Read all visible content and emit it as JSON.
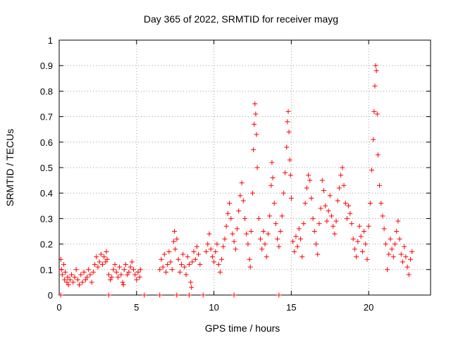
{
  "chart_data": {
    "type": "scatter",
    "title": "Day 365 of 2022, SRMTID for receiver mayg",
    "xlabel": "GPS time / hours",
    "ylabel": "SRMTID / TECUs",
    "xlim": [
      0,
      24
    ],
    "ylim": [
      0,
      1
    ],
    "xticks": [
      {
        "value": 0,
        "label": "0"
      },
      {
        "value": 5,
        "label": "5"
      },
      {
        "value": 10,
        "label": "10"
      },
      {
        "value": 15,
        "label": "15"
      },
      {
        "value": 20,
        "label": "20"
      }
    ],
    "yticks": [
      {
        "value": 0,
        "label": "0"
      },
      {
        "value": 0.1,
        "label": "0.1"
      },
      {
        "value": 0.2,
        "label": "0.2"
      },
      {
        "value": 0.3,
        "label": "0.3"
      },
      {
        "value": 0.4,
        "label": "0.4"
      },
      {
        "value": 0.5,
        "label": "0.5"
      },
      {
        "value": 0.6,
        "label": "0.6"
      },
      {
        "value": 0.7,
        "label": "0.7"
      },
      {
        "value": 0.8,
        "label": "0.8"
      },
      {
        "value": 0.9,
        "label": "0.9"
      },
      {
        "value": 1,
        "label": "1"
      }
    ],
    "grid": true,
    "marker": "+",
    "color": "#ff0000",
    "series": [
      {
        "name": "SRMTID",
        "points": [
          [
            0.1,
            0.14
          ],
          [
            0.15,
            0.1
          ],
          [
            0.2,
            0.08
          ],
          [
            0.3,
            0.12
          ],
          [
            0.35,
            0.06
          ],
          [
            0.4,
            0.09
          ],
          [
            0.5,
            0.05
          ],
          [
            0.55,
            0.07
          ],
          [
            0.6,
            0.04
          ],
          [
            0.7,
            0.06
          ],
          [
            0.8,
            0.08
          ],
          [
            0.9,
            0.05
          ],
          [
            1.0,
            0.07
          ],
          [
            1.1,
            0.1
          ],
          [
            1.2,
            0.06
          ],
          [
            1.3,
            0.04
          ],
          [
            1.4,
            0.08
          ],
          [
            1.5,
            0.05
          ],
          [
            1.6,
            0.09
          ],
          [
            1.7,
            0.06
          ],
          [
            1.8,
            0.07
          ],
          [
            1.9,
            0.1
          ],
          [
            2.0,
            0.08
          ],
          [
            2.1,
            0.05
          ],
          [
            2.2,
            0.09
          ],
          [
            2.3,
            0.12
          ],
          [
            2.4,
            0.15
          ],
          [
            2.5,
            0.11
          ],
          [
            2.6,
            0.13
          ],
          [
            2.7,
            0.16
          ],
          [
            2.8,
            0.12
          ],
          [
            2.9,
            0.15
          ],
          [
            3.0,
            0.13
          ],
          [
            3.05,
            0.17
          ],
          [
            3.1,
            0.14
          ],
          [
            3.2,
            0.08
          ],
          [
            3.3,
            0.06
          ],
          [
            3.4,
            0.07
          ],
          [
            3.5,
            0.1
          ],
          [
            3.6,
            0.12
          ],
          [
            3.7,
            0.09
          ],
          [
            3.8,
            0.07
          ],
          [
            3.9,
            0.11
          ],
          [
            4.0,
            0.08
          ],
          [
            4.1,
            0.05
          ],
          [
            4.15,
            0.04
          ],
          [
            4.2,
            0.1
          ],
          [
            4.3,
            0.12
          ],
          [
            4.4,
            0.08
          ],
          [
            4.5,
            0.09
          ],
          [
            4.6,
            0.11
          ],
          [
            4.7,
            0.13
          ],
          [
            4.8,
            0.1
          ],
          [
            4.9,
            0.08
          ],
          [
            5.0,
            0.06
          ],
          [
            5.1,
            0.09
          ],
          [
            5.2,
            0.07
          ],
          [
            5.25,
            0.1
          ],
          [
            6.5,
            0.1
          ],
          [
            6.6,
            0.14
          ],
          [
            6.7,
            0.11
          ],
          [
            6.8,
            0.16
          ],
          [
            6.9,
            0.09
          ],
          [
            7.0,
            0.12
          ],
          [
            7.1,
            0.17
          ],
          [
            7.2,
            0.13
          ],
          [
            7.3,
            0.1
          ],
          [
            7.4,
            0.21
          ],
          [
            7.45,
            0.25
          ],
          [
            7.5,
            0.18
          ],
          [
            7.6,
            0.22
          ],
          [
            7.7,
            0.14
          ],
          [
            7.8,
            0.09
          ],
          [
            7.9,
            0.12
          ],
          [
            8.0,
            0.16
          ],
          [
            8.1,
            0.11
          ],
          [
            8.2,
            0.08
          ],
          [
            8.3,
            0.15
          ],
          [
            8.4,
            0.12
          ],
          [
            8.5,
            0.05
          ],
          [
            8.55,
            0.03
          ],
          [
            8.6,
            0.13
          ],
          [
            8.7,
            0.17
          ],
          [
            8.8,
            0.14
          ],
          [
            8.9,
            0.19
          ],
          [
            9.0,
            0.16
          ],
          [
            9.1,
            0.12
          ],
          [
            9.5,
            0.17
          ],
          [
            9.6,
            0.2
          ],
          [
            9.7,
            0.24
          ],
          [
            9.8,
            0.18
          ],
          [
            9.9,
            0.15
          ],
          [
            10.0,
            0.13
          ],
          [
            10.1,
            0.17
          ],
          [
            10.2,
            0.2
          ],
          [
            10.3,
            0.12
          ],
          [
            10.4,
            0.09
          ],
          [
            10.5,
            0.14
          ],
          [
            10.6,
            0.19
          ],
          [
            10.7,
            0.22
          ],
          [
            10.8,
            0.27
          ],
          [
            10.9,
            0.32
          ],
          [
            11.0,
            0.36
          ],
          [
            11.1,
            0.3
          ],
          [
            11.2,
            0.24
          ],
          [
            11.3,
            0.21
          ],
          [
            11.4,
            0.18
          ],
          [
            11.5,
            0.26
          ],
          [
            11.6,
            0.33
          ],
          [
            11.7,
            0.39
          ],
          [
            11.8,
            0.44
          ],
          [
            11.9,
            0.37
          ],
          [
            12.0,
            0.3
          ],
          [
            12.1,
            0.24
          ],
          [
            12.2,
            0.2
          ],
          [
            12.3,
            0.14
          ],
          [
            12.35,
            0.11
          ],
          [
            12.4,
            0.25
          ],
          [
            12.5,
            0.4
          ],
          [
            12.55,
            0.57
          ],
          [
            12.6,
            0.67
          ],
          [
            12.65,
            0.75
          ],
          [
            12.7,
            0.71
          ],
          [
            12.75,
            0.63
          ],
          [
            12.8,
            0.5
          ],
          [
            12.9,
            0.3
          ],
          [
            13.0,
            0.22
          ],
          [
            13.1,
            0.18
          ],
          [
            13.2,
            0.25
          ],
          [
            13.3,
            0.2
          ],
          [
            13.4,
            0.15
          ],
          [
            13.5,
            0.24
          ],
          [
            13.6,
            0.31
          ],
          [
            13.7,
            0.43
          ],
          [
            13.75,
            0.52
          ],
          [
            13.8,
            0.46
          ],
          [
            13.9,
            0.36
          ],
          [
            14.0,
            0.28
          ],
          [
            14.1,
            0.22
          ],
          [
            14.2,
            0.19
          ],
          [
            14.3,
            0.25
          ],
          [
            14.4,
            0.31
          ],
          [
            14.5,
            0.4
          ],
          [
            14.6,
            0.48
          ],
          [
            14.7,
            0.58
          ],
          [
            14.75,
            0.68
          ],
          [
            14.8,
            0.72
          ],
          [
            14.85,
            0.64
          ],
          [
            14.9,
            0.53
          ],
          [
            14.95,
            0.47
          ],
          [
            15.0,
            0.38
          ],
          [
            15.1,
            0.21
          ],
          [
            15.2,
            0.17
          ],
          [
            15.3,
            0.23
          ],
          [
            15.4,
            0.19
          ],
          [
            15.5,
            0.26
          ],
          [
            15.6,
            0.22
          ],
          [
            15.7,
            0.15
          ],
          [
            15.8,
            0.28
          ],
          [
            15.9,
            0.36
          ],
          [
            16.0,
            0.42
          ],
          [
            16.1,
            0.47
          ],
          [
            16.2,
            0.45
          ],
          [
            16.3,
            0.38
          ],
          [
            16.4,
            0.3
          ],
          [
            16.5,
            0.25
          ],
          [
            16.6,
            0.2
          ],
          [
            16.7,
            0.16
          ],
          [
            16.8,
            0.28
          ],
          [
            16.9,
            0.34
          ],
          [
            17.0,
            0.45
          ],
          [
            17.1,
            0.41
          ],
          [
            17.2,
            0.35
          ],
          [
            17.3,
            0.29
          ],
          [
            17.4,
            0.33
          ],
          [
            17.5,
            0.39
          ],
          [
            17.6,
            0.31
          ],
          [
            17.7,
            0.27
          ],
          [
            17.8,
            0.24
          ],
          [
            17.9,
            0.29
          ],
          [
            18.0,
            0.37
          ],
          [
            18.1,
            0.42
          ],
          [
            18.2,
            0.47
          ],
          [
            18.3,
            0.5
          ],
          [
            18.4,
            0.43
          ],
          [
            18.5,
            0.36
          ],
          [
            18.6,
            0.3
          ],
          [
            18.7,
            0.35
          ],
          [
            18.8,
            0.32
          ],
          [
            18.9,
            0.28
          ],
          [
            19.0,
            0.22
          ],
          [
            19.1,
            0.18
          ],
          [
            19.2,
            0.15
          ],
          [
            19.3,
            0.21
          ],
          [
            19.4,
            0.27
          ],
          [
            19.5,
            0.23
          ],
          [
            19.6,
            0.17
          ],
          [
            19.7,
            0.25
          ],
          [
            19.8,
            0.2
          ],
          [
            19.9,
            0.14
          ],
          [
            20.0,
            0.27
          ],
          [
            20.1,
            0.36
          ],
          [
            20.2,
            0.49
          ],
          [
            20.3,
            0.61
          ],
          [
            20.35,
            0.72
          ],
          [
            20.4,
            0.82
          ],
          [
            20.45,
            0.9
          ],
          [
            20.5,
            0.88
          ],
          [
            20.55,
            0.71
          ],
          [
            20.6,
            0.55
          ],
          [
            20.7,
            0.43
          ],
          [
            20.8,
            0.36
          ],
          [
            20.9,
            0.31
          ],
          [
            21.0,
            0.26
          ],
          [
            21.1,
            0.2
          ],
          [
            21.2,
            0.1
          ],
          [
            21.3,
            0.16
          ],
          [
            21.4,
            0.22
          ],
          [
            21.5,
            0.18
          ],
          [
            21.6,
            0.15
          ],
          [
            21.7,
            0.2
          ],
          [
            21.8,
            0.25
          ],
          [
            21.9,
            0.29
          ],
          [
            22.0,
            0.22
          ],
          [
            22.1,
            0.16
          ],
          [
            22.2,
            0.13
          ],
          [
            22.3,
            0.19
          ],
          [
            22.4,
            0.15
          ],
          [
            22.5,
            0.11
          ],
          [
            22.6,
            0.08
          ],
          [
            22.7,
            0.14
          ],
          [
            22.8,
            0.17
          ],
          [
            0.1,
            0.0
          ],
          [
            3.2,
            0.0
          ],
          [
            5.5,
            0.0
          ],
          [
            6.5,
            0.0
          ],
          [
            7.6,
            0.0
          ],
          [
            8.4,
            0.0
          ],
          [
            9.3,
            0.0
          ],
          [
            11.3,
            0.0
          ],
          [
            14.2,
            0.0
          ]
        ]
      }
    ]
  }
}
